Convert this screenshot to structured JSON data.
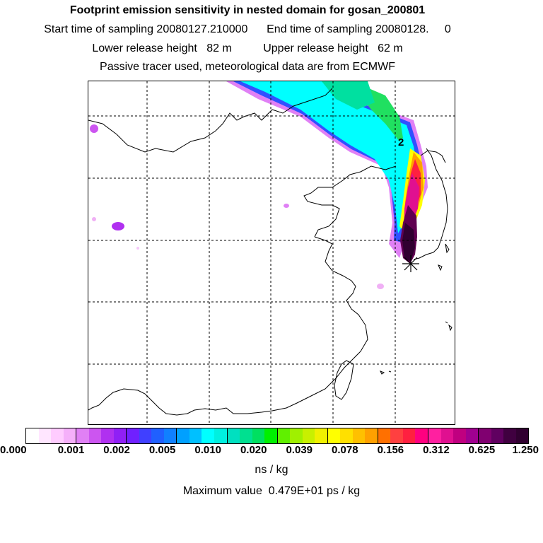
{
  "titles": {
    "line1": "Footprint emission sensitivity in nested domain for gosan_200801",
    "line2": "Start time of sampling 20080127.210000      End time of sampling 20080128.     0",
    "line3": "Lower release height   82 m          Upper release height   62 m",
    "line4": "Passive tracer used, meteorological data are from ECMWF"
  },
  "map": {
    "marker_label": "2",
    "receptor_icon": "star-marker"
  },
  "legend": {
    "tick_labels": [
      "0.000",
      "0.001",
      "0.002",
      "0.005",
      "0.010",
      "0.020",
      "0.039",
      "0.078",
      "0.156",
      "0.312",
      "0.625",
      "1.250"
    ],
    "units": "ns / kg",
    "colors": [
      "#ffffff",
      "#ffe6ff",
      "#ffccff",
      "#f5b0fa",
      "#e080f5",
      "#cc55f0",
      "#b030f0",
      "#9020f5",
      "#7020ff",
      "#4040ff",
      "#2060ff",
      "#1080ff",
      "#00a0ff",
      "#00c0ff",
      "#00ffff",
      "#00f0e0",
      "#00e0c0",
      "#00e090",
      "#00e060",
      "#00f000",
      "#60f000",
      "#a0f000",
      "#c8f000",
      "#f0f000",
      "#ffff00",
      "#ffe000",
      "#ffc000",
      "#ffa000",
      "#ff7000",
      "#ff4040",
      "#ff2040",
      "#ff0080",
      "#ff20a0",
      "#e01090",
      "#c00080",
      "#a00090",
      "#800070",
      "#600060",
      "#400040",
      "#300030"
    ]
  },
  "max_value": "Maximum value  0.479E+01 ps / kg"
}
